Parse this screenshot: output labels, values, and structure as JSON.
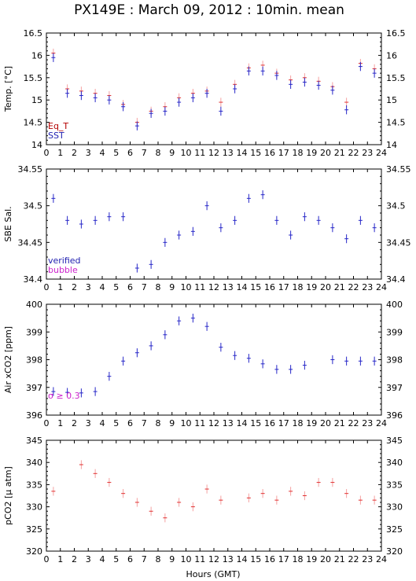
{
  "title": "PX149E : March 09, 2012 : 10min. mean",
  "xlabel": "Hours (GMT)",
  "colors": {
    "blue": "#2727c8",
    "red": "#e03030",
    "light_red": "#f4a0a0",
    "magenta": "#cc22cc",
    "dark_blue": "#1f1fb0",
    "dark_red": "#b40000"
  },
  "chart_data": [
    {
      "type": "scatter",
      "id": "temp",
      "ylabel": "Temp. [°C]",
      "ylim": [
        14,
        16.5
      ],
      "yticks": [
        14,
        14.5,
        15,
        15.5,
        16,
        16.5
      ],
      "ytick_labels": [
        "14",
        "14.5",
        "15",
        "15.5",
        "16",
        "16.5"
      ],
      "xlim": [
        0,
        24
      ],
      "legend": [
        "Eq_T",
        "SST"
      ],
      "series": [
        {
          "name": "Eq_T",
          "color": "red",
          "x": [
            0.5,
            1.5,
            2.5,
            3.5,
            4.5,
            5.5,
            6.5,
            7.5,
            8.5,
            9.5,
            10.5,
            11.5,
            12.5,
            13.5,
            14.5,
            15.5,
            16.5,
            17.5,
            18.5,
            19.5,
            20.5,
            21.5,
            22.5,
            23.5
          ],
          "values": [
            16.05,
            15.25,
            15.2,
            15.15,
            15.1,
            14.9,
            14.5,
            14.75,
            14.85,
            15.05,
            15.15,
            15.2,
            14.95,
            15.35,
            15.72,
            15.78,
            15.6,
            15.45,
            15.5,
            15.42,
            15.3,
            14.95,
            15.82,
            15.7
          ]
        },
        {
          "name": "SST",
          "color": "blue",
          "x": [
            0.5,
            1.5,
            2.5,
            3.5,
            4.5,
            5.5,
            6.5,
            7.5,
            8.5,
            9.5,
            10.5,
            11.5,
            12.5,
            13.5,
            14.5,
            15.5,
            16.5,
            17.5,
            18.5,
            19.5,
            20.5,
            21.5,
            22.5,
            23.5
          ],
          "values": [
            15.95,
            15.15,
            15.1,
            15.05,
            15.0,
            14.85,
            14.42,
            14.7,
            14.75,
            14.95,
            15.05,
            15.15,
            14.75,
            15.25,
            15.65,
            15.65,
            15.55,
            15.35,
            15.4,
            15.33,
            15.22,
            14.78,
            15.75,
            15.6
          ]
        }
      ]
    },
    {
      "type": "scatter",
      "id": "sal",
      "ylabel": "SBE Sal.",
      "ylim": [
        34.4,
        34.55
      ],
      "yticks": [
        34.4,
        34.45,
        34.5,
        34.55
      ],
      "ytick_labels": [
        "34.4",
        "34.45",
        "34.5",
        "34.55"
      ],
      "xlim": [
        0,
        24
      ],
      "legend": [
        "verified",
        "bubble"
      ],
      "series": [
        {
          "name": "verified",
          "color": "blue",
          "x": [
            0.5,
            1.5,
            2.5,
            3.5,
            4.5,
            5.5,
            6.5,
            7.5,
            8.5,
            9.5,
            10.5,
            11.5,
            12.5,
            13.5,
            14.5,
            15.5,
            16.5,
            17.5,
            18.5,
            19.5,
            20.5,
            21.5,
            22.5,
            23.5
          ],
          "values": [
            34.51,
            34.48,
            34.475,
            34.48,
            34.485,
            34.485,
            34.415,
            34.42,
            34.45,
            34.46,
            34.465,
            34.5,
            34.47,
            34.48,
            34.51,
            34.515,
            34.48,
            34.46,
            34.485,
            34.48,
            34.47,
            34.455,
            34.48,
            34.47
          ]
        }
      ]
    },
    {
      "type": "scatter",
      "id": "xco2",
      "ylabel": "Air xCO2 [ppm]",
      "ylim": [
        396,
        400
      ],
      "yticks": [
        396,
        397,
        398,
        399,
        400
      ],
      "ytick_labels": [
        "396",
        "397",
        "398",
        "399",
        "400"
      ],
      "xlim": [
        0,
        24
      ],
      "annotation": "σ ≥ 0.3",
      "series": [
        {
          "name": "",
          "color": "blue",
          "x": [
            0.5,
            1.5,
            2.5,
            3.5,
            4.5,
            5.5,
            6.5,
            7.5,
            8.5,
            9.5,
            10.5,
            11.5,
            12.5,
            13.5,
            14.5,
            15.5,
            16.5,
            17.5,
            18.5,
            20.5,
            21.5,
            22.5,
            23.5
          ],
          "values": [
            396.85,
            396.82,
            396.8,
            396.85,
            397.4,
            397.95,
            398.25,
            398.5,
            398.9,
            399.4,
            399.5,
            399.2,
            398.45,
            398.15,
            398.05,
            397.85,
            397.65,
            397.65,
            397.8,
            398.0,
            397.95,
            397.95,
            397.95
          ]
        }
      ]
    },
    {
      "type": "scatter",
      "id": "pco2",
      "ylabel": "pCO2 [μ atm]",
      "ylim": [
        320,
        345
      ],
      "yticks": [
        320,
        325,
        330,
        335,
        340,
        345
      ],
      "ytick_labels": [
        "320",
        "325",
        "330",
        "335",
        "340",
        "345"
      ],
      "xlim": [
        0,
        24
      ],
      "series": [
        {
          "name": "",
          "color": "red",
          "x": [
            0.5,
            2.5,
            3.5,
            4.5,
            5.5,
            6.5,
            7.5,
            8.5,
            9.5,
            10.5,
            11.5,
            12.5,
            14.5,
            15.5,
            16.5,
            17.5,
            18.5,
            19.5,
            20.5,
            21.5,
            22.5,
            23.5
          ],
          "values": [
            333.5,
            339.5,
            337.5,
            335.5,
            333.0,
            331.0,
            329.0,
            327.5,
            331.0,
            330.0,
            334.0,
            331.5,
            332.0,
            333.0,
            331.5,
            333.5,
            332.5,
            335.5,
            335.5,
            333.0,
            331.5,
            331.5
          ]
        }
      ]
    }
  ]
}
